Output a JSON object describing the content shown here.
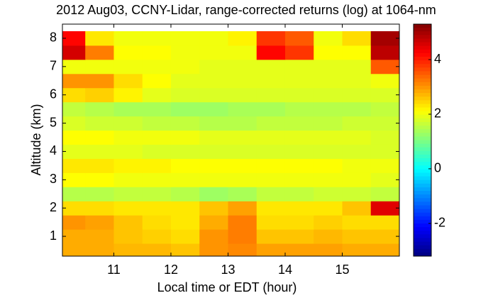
{
  "chart_data": {
    "type": "heatmap",
    "title": "2012 Aug03, CCNY-Lidar, range-corrected returns (log) at 1064-nm",
    "xlabel": "Local time or EDT (hour)",
    "ylabel": "Altitude (km)",
    "x": [
      10.25,
      10.75,
      11.25,
      11.75,
      12.25,
      12.75,
      13.25,
      13.75,
      14.25,
      14.75,
      15.25,
      15.75
    ],
    "y": [
      0.5,
      1.0,
      1.5,
      2.0,
      2.5,
      3.0,
      3.5,
      4.0,
      4.5,
      5.0,
      5.5,
      6.0,
      6.5,
      7.0,
      7.5,
      8.0
    ],
    "z": [
      [
        2.8,
        2.8,
        2.7,
        2.7,
        2.6,
        3.0,
        3.1,
        2.9,
        2.9,
        2.9,
        2.8,
        2.8
      ],
      [
        2.8,
        2.8,
        2.6,
        2.5,
        2.4,
        3.0,
        3.2,
        2.6,
        2.6,
        2.7,
        2.6,
        2.6
      ],
      [
        3.0,
        2.9,
        2.6,
        2.4,
        2.3,
        2.8,
        3.2,
        2.4,
        2.4,
        2.5,
        2.4,
        2.4
      ],
      [
        2.4,
        2.4,
        2.3,
        2.3,
        2.3,
        2.6,
        2.9,
        2.3,
        2.3,
        2.3,
        2.6,
        4.5
      ],
      [
        1.5,
        1.5,
        1.6,
        1.6,
        1.5,
        1.3,
        1.4,
        1.6,
        1.6,
        1.7,
        1.7,
        1.6
      ],
      [
        2.1,
        2.1,
        2.0,
        2.0,
        2.0,
        2.0,
        2.0,
        2.0,
        2.0,
        2.0,
        2.0,
        1.9
      ],
      [
        2.3,
        2.3,
        2.2,
        2.2,
        2.1,
        2.1,
        2.1,
        2.1,
        2.1,
        2.1,
        2.0,
        2.0
      ],
      [
        1.9,
        1.9,
        1.9,
        1.8,
        1.8,
        1.8,
        1.8,
        1.8,
        1.8,
        1.8,
        1.8,
        1.8
      ],
      [
        2.1,
        2.1,
        2.0,
        2.0,
        2.0,
        1.9,
        1.9,
        1.9,
        1.9,
        1.9,
        1.9,
        1.8
      ],
      [
        1.8,
        1.7,
        1.7,
        1.6,
        1.6,
        1.5,
        1.5,
        1.6,
        1.6,
        1.6,
        1.7,
        1.7
      ],
      [
        1.6,
        1.5,
        1.4,
        1.4,
        1.3,
        1.3,
        1.4,
        1.4,
        1.5,
        1.5,
        1.5,
        1.6
      ],
      [
        2.4,
        2.5,
        2.2,
        1.9,
        1.8,
        1.8,
        1.8,
        1.8,
        1.8,
        1.8,
        1.8,
        1.8
      ],
      [
        3.0,
        3.0,
        2.4,
        2.1,
        1.9,
        1.9,
        1.9,
        1.9,
        1.9,
        1.9,
        1.9,
        2.0
      ],
      [
        2.0,
        2.0,
        2.0,
        2.0,
        2.0,
        1.9,
        1.9,
        1.9,
        1.9,
        1.9,
        1.9,
        3.5
      ],
      [
        4.6,
        3.2,
        2.1,
        2.1,
        2.0,
        2.0,
        2.0,
        4.2,
        3.8,
        2.1,
        2.1,
        4.8
      ],
      [
        4.2,
        2.3,
        2.0,
        2.0,
        2.0,
        2.0,
        2.2,
        3.8,
        3.5,
        2.0,
        2.4,
        5.0
      ]
    ],
    "xlim": [
      10.1,
      16.0
    ],
    "xticks": [
      11,
      12,
      13,
      14,
      15
    ],
    "ylim": [
      0.3,
      8.5
    ],
    "yticks": [
      1,
      2,
      3,
      4,
      5,
      6,
      7,
      8
    ],
    "colormap": "jet",
    "clim": [
      -3.2,
      5.3
    ],
    "cticks": [
      -2,
      0,
      2,
      4
    ]
  }
}
